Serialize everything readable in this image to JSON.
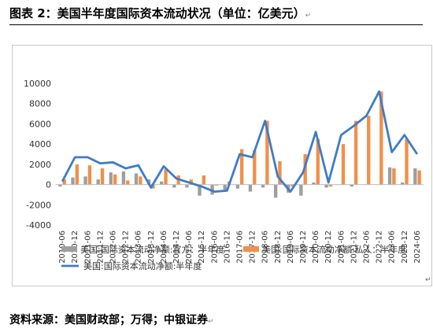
{
  "page": {
    "title": "图表 2：美国半年度国际资本流动状况（单位：亿美元）",
    "source": "资料来源：美国财政部；万得；中银证券",
    "para_mark": "↵"
  },
  "chart_data": {
    "type": "bar",
    "categories": [
      "2010-06",
      "2010-12",
      "2011-06",
      "2011-12",
      "2012-06",
      "2012-12",
      "2013-06",
      "2013-12",
      "2014-06",
      "2014-12",
      "2015-06",
      "2015-12",
      "2016-06",
      "2016-12",
      "2017-06",
      "2017-12",
      "2018-06",
      "2018-12",
      "2019-06",
      "2019-12",
      "2020-06",
      "2020-12",
      "2021-06",
      "2021-12",
      "2022-06",
      "2022-12",
      "2023-06",
      "2023-12",
      "2024-06"
    ],
    "tick_labels": [
      "2010-06",
      "2010-12",
      "2011-06",
      "2011-12",
      "2012-06",
      "2012-12",
      "2013-06",
      "2013-12",
      "2014-06",
      "2014-12",
      "2015-06",
      "2015-12",
      "2016-06",
      "2016-12",
      "2017-06",
      "2017-12",
      "2018-06",
      "2018-12",
      "2019-06",
      "2019-12",
      "2020-06",
      "2020-12",
      "2021-06",
      "2021-12",
      "2022-06",
      "2022-12",
      "2023-06",
      "2023-12",
      "2024-06"
    ],
    "series": [
      {
        "name": "美国:国际资本流动净额:官方：半年度",
        "kind": "bar",
        "color": "#9e9e9e",
        "values": [
          -200,
          700,
          800,
          500,
          1200,
          1300,
          1100,
          500,
          300,
          -300,
          -300,
          -1100,
          -1000,
          -500,
          -400,
          -700,
          -300,
          -1300,
          -800,
          -1100,
          200,
          -300,
          0,
          -200,
          0,
          0,
          1700,
          200,
          1600
        ]
      },
      {
        "name": "美国:国际资本流动净额:私人：半年度",
        "kind": "bar",
        "color": "#f0904a",
        "values": [
          500,
          2000,
          1900,
          1600,
          1000,
          400,
          800,
          -400,
          1500,
          900,
          500,
          900,
          -100,
          300,
          3500,
          3400,
          6300,
          2300,
          -200,
          3000,
          4500,
          -200,
          4000,
          6300,
          6800,
          9200,
          1600,
          4500,
          1400
        ]
      },
      {
        "name": "美国:国际资本流动净额:半年度",
        "kind": "line",
        "color": "#3f7cc4",
        "values": [
          300,
          2700,
          2700,
          2100,
          2200,
          1600,
          1900,
          -300,
          1800,
          600,
          200,
          -200,
          -700,
          -600,
          3000,
          2700,
          6300,
          800,
          -700,
          1200,
          5200,
          200,
          4900,
          5800,
          6800,
          9200,
          3200,
          4900,
          3000
        ]
      }
    ],
    "ylim": [
      -4000,
      10000
    ],
    "yticks": [
      -4000,
      -2000,
      0,
      2000,
      4000,
      6000,
      8000,
      10000
    ],
    "grid": false,
    "legend_position": "bottom"
  }
}
